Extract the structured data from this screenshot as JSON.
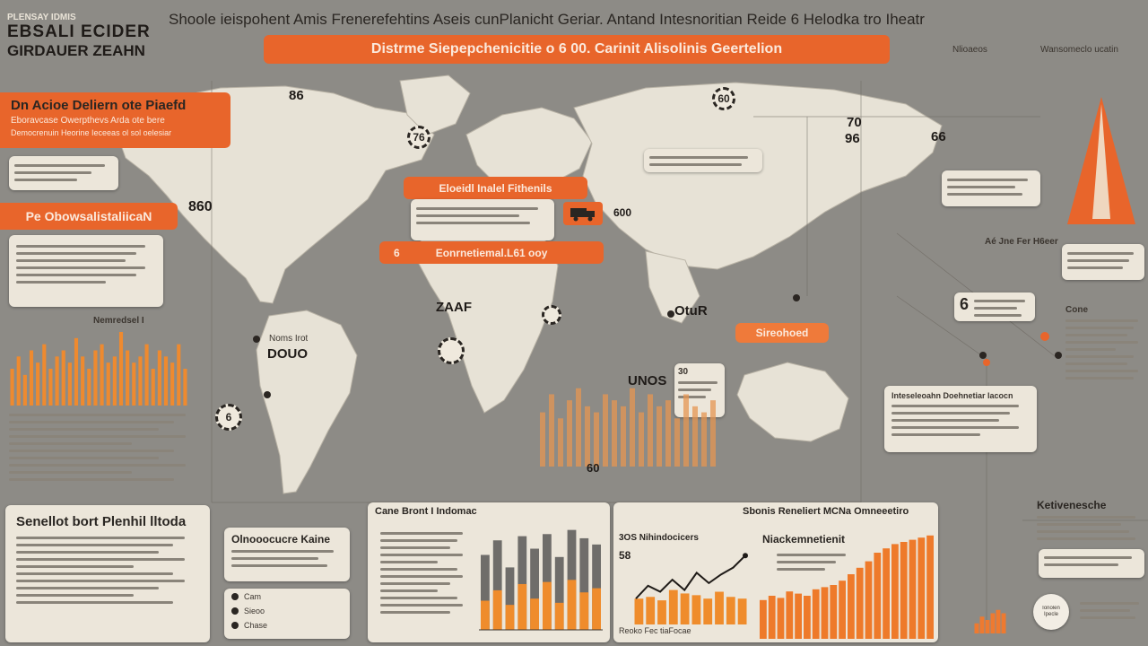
{
  "header": {
    "brand_line1": "PLENSAY IDMIS",
    "brand_line2": "EBSALI ECIDER",
    "brand_line3": "GIRDAUER ZEAHN",
    "title": "Shoole ieispohent Amis Frenerefehtins Aseis cunPlanicht Geriar. Antand Intesnoritian Reide 6 Helodka tro Iheatr",
    "banner": "Distrme Siepepchenicitie o 6 00. Carinit Alisolinis Geertelion",
    "top_right_label_1": "Nlioaeos",
    "top_right_label_2": "Wansomeclo ucatin"
  },
  "left_panel": {
    "alert_title": "Dn Acioe Deliern ote Piaefd",
    "alert_sub1": "Eboravcase Owerpthevs Arda ote bere",
    "alert_sub2": "Democrenuin Heorine Ieceeas ol sol oelesiar",
    "section_pill": "Pe ObowsalistaliicaN",
    "big_number": "860",
    "chart_label": "Nemredsel I",
    "bottom_card_title": "Senellot bort Plenhil lltoda",
    "legend_items": [
      {
        "icon": "pin-icon",
        "label": "Cam"
      },
      {
        "icon": "pin-icon",
        "label": "Sieoo"
      },
      {
        "icon": "pin-icon",
        "label": "Chase"
      }
    ]
  },
  "map": {
    "labels": [
      "86",
      "76",
      "70",
      "96",
      "66",
      "860",
      "ZAAF",
      "OtuR",
      "UNOS",
      "DOUO",
      "Noms Irot",
      "600",
      "60",
      "6"
    ],
    "pill_center_1": "Eloeidl Inalel Fithenils",
    "pill_center_2": "Eonrnetiemal.L61 ooy",
    "pill_center_3": "Sireohoed",
    "pill_prefix": "6",
    "bar_label": "60",
    "right_label": "Aé Jne Fer H6eer",
    "right_card_number": "6",
    "right_card_title": "Inteseleoahn Doehnetiar lacocn",
    "cone_badge": "Cone",
    "info_card_number": "30",
    "info_card_mid": "UNDS"
  },
  "bottom": {
    "card_mid_left_title": "Olnooocucre Kaine",
    "card_a_title": "Cane Bront I Indomac",
    "card_b_title": "Sbonis Reneliert MCNa Omneeetiro",
    "line_chart_title": "3OS Nihindocicers",
    "line_chart_value": "58",
    "bar_chart_title": "Niackemnetienit",
    "x_axis_text": "Reoko Fec tiaFocae",
    "right_title": "Ketivenesche",
    "badge_text": "Ionolen Ipecle"
  },
  "colors": {
    "background": "#8d8b86",
    "accent": "#e8652b",
    "card": "#ece6da",
    "bar_gray": "#6f6d6a"
  },
  "chart_data": [
    {
      "type": "bar",
      "title": "Nemredsel I",
      "values": [
        6,
        8,
        5,
        9,
        7,
        10,
        6,
        8,
        9,
        7,
        11,
        8,
        6,
        9,
        10,
        7,
        8,
        12,
        9,
        7,
        8,
        10,
        6,
        9,
        8,
        7,
        10,
        6
      ]
    },
    {
      "type": "bar",
      "title": "60",
      "values": [
        9,
        12,
        8,
        11,
        13,
        10,
        9,
        12,
        11,
        10,
        13,
        9,
        12,
        10,
        11,
        8,
        12,
        10,
        9,
        11
      ]
    },
    {
      "type": "bar",
      "title": "Cane Bront I Indomac",
      "series": [
        {
          "name": "gray",
          "values": [
            72,
            86,
            60,
            90,
            78,
            92,
            70,
            96,
            88,
            82
          ]
        },
        {
          "name": "orange",
          "values": [
            28,
            38,
            24,
            44,
            30,
            46,
            26,
            48,
            36,
            40
          ]
        }
      ]
    },
    {
      "type": "line",
      "title": "3OS Nihindocicers",
      "values": [
        30,
        45,
        38,
        52,
        40,
        60,
        48,
        58,
        66,
        80
      ]
    },
    {
      "type": "bar",
      "title": "3OS Nihindocicers",
      "values": [
        30,
        32,
        28,
        40,
        36,
        34,
        30,
        38,
        32,
        30
      ]
    },
    {
      "type": "bar",
      "title": "Niackemnetienit",
      "values": [
        36,
        40,
        38,
        44,
        42,
        40,
        46,
        48,
        50,
        54,
        60,
        66,
        72,
        80,
        84,
        88,
        90,
        92,
        94,
        96
      ]
    }
  ]
}
